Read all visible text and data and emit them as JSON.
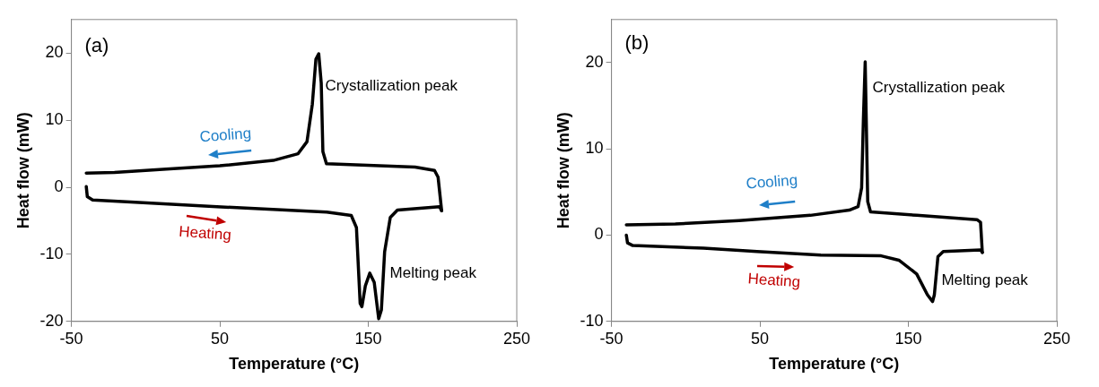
{
  "chart_data": [
    {
      "type": "line",
      "xlabel": "Temperature (°C)",
      "ylabel": "Heat flow (mW)",
      "xlim": [
        -50,
        250
      ],
      "xticks": [
        -50,
        50,
        150,
        250
      ],
      "ylim": [
        -20,
        25
      ],
      "yticks": [
        -20,
        -10,
        0,
        10,
        20
      ],
      "marker": "none",
      "annotations": [
        "(a)",
        "Crystallization peak",
        "Cooling",
        "Heating",
        "Melting peak"
      ],
      "series": [
        {
          "color": "#000000",
          "x": [
            -40,
            -39.3,
            -35.7,
            -10,
            48,
            122,
            138.5,
            142,
            144.5,
            145.7,
            148,
            151,
            154,
            157,
            158.8,
            161,
            164.8,
            169.6,
            198,
            199.4
          ],
          "values": [
            0.1,
            -1.4,
            -1.9,
            -2.2,
            -2.9,
            -3.7,
            -4.2,
            -6,
            -17.3,
            -17.8,
            -14.7,
            -12.8,
            -14.2,
            -19.6,
            -18.3,
            -9.6,
            -4.5,
            -3.4,
            -2.9,
            -3.5
          ]
        },
        {
          "color": "#000000",
          "x": [
            199.4,
            197,
            194.6,
            181.5,
            121.8,
            119.4,
            118.3,
            116.6,
            114.7,
            112.3,
            108.7,
            102.7,
            86,
            50,
            14,
            -21,
            -40
          ],
          "values": [
            -3.5,
            1.5,
            2.5,
            3,
            3.5,
            5.3,
            15.5,
            19.9,
            19.1,
            12.4,
            6.8,
            5,
            4,
            3.2,
            2.7,
            2.2,
            2.1
          ]
        }
      ]
    },
    {
      "type": "line",
      "xlabel": "Temperature (°C)",
      "ylabel": "Heat flow (mW)",
      "xlim": [
        -50,
        250
      ],
      "xticks": [
        -50,
        50,
        150,
        250
      ],
      "ylim": [
        -10,
        25
      ],
      "yticks": [
        -10,
        0,
        10,
        20
      ],
      "marker": "none",
      "annotations": [
        "(b)",
        "Crystallization peak",
        "Cooling",
        "Heating",
        "Melting peak"
      ],
      "series": [
        {
          "color": "#000000",
          "x": [
            -40,
            -39.2,
            -35.7,
            12,
            48,
            91,
            131.7,
            143.6,
            155.6,
            162.8,
            166.3,
            167.5,
            169.9,
            173.5,
            198.6,
            199.8
          ],
          "values": [
            0,
            -0.9,
            -1.2,
            -1.5,
            -1.9,
            -2.3,
            -2.4,
            -2.9,
            -4.5,
            -6.9,
            -7.7,
            -6.9,
            -2.5,
            -1.9,
            -1.7,
            -2
          ]
        },
        {
          "color": "#000000",
          "x": [
            199.8,
            198.6,
            196.2,
            155.6,
            124.5,
            122.6,
            121.6,
            120.9,
            119.7,
            118.5,
            116.1,
            110.2,
            84,
            36,
            -7,
            -40
          ],
          "values": [
            -2,
            1.5,
            1.8,
            2.3,
            2.7,
            3.9,
            13.5,
            20.1,
            13.5,
            5.5,
            3.3,
            2.9,
            2.3,
            1.7,
            1.3,
            1.2
          ]
        }
      ]
    }
  ]
}
